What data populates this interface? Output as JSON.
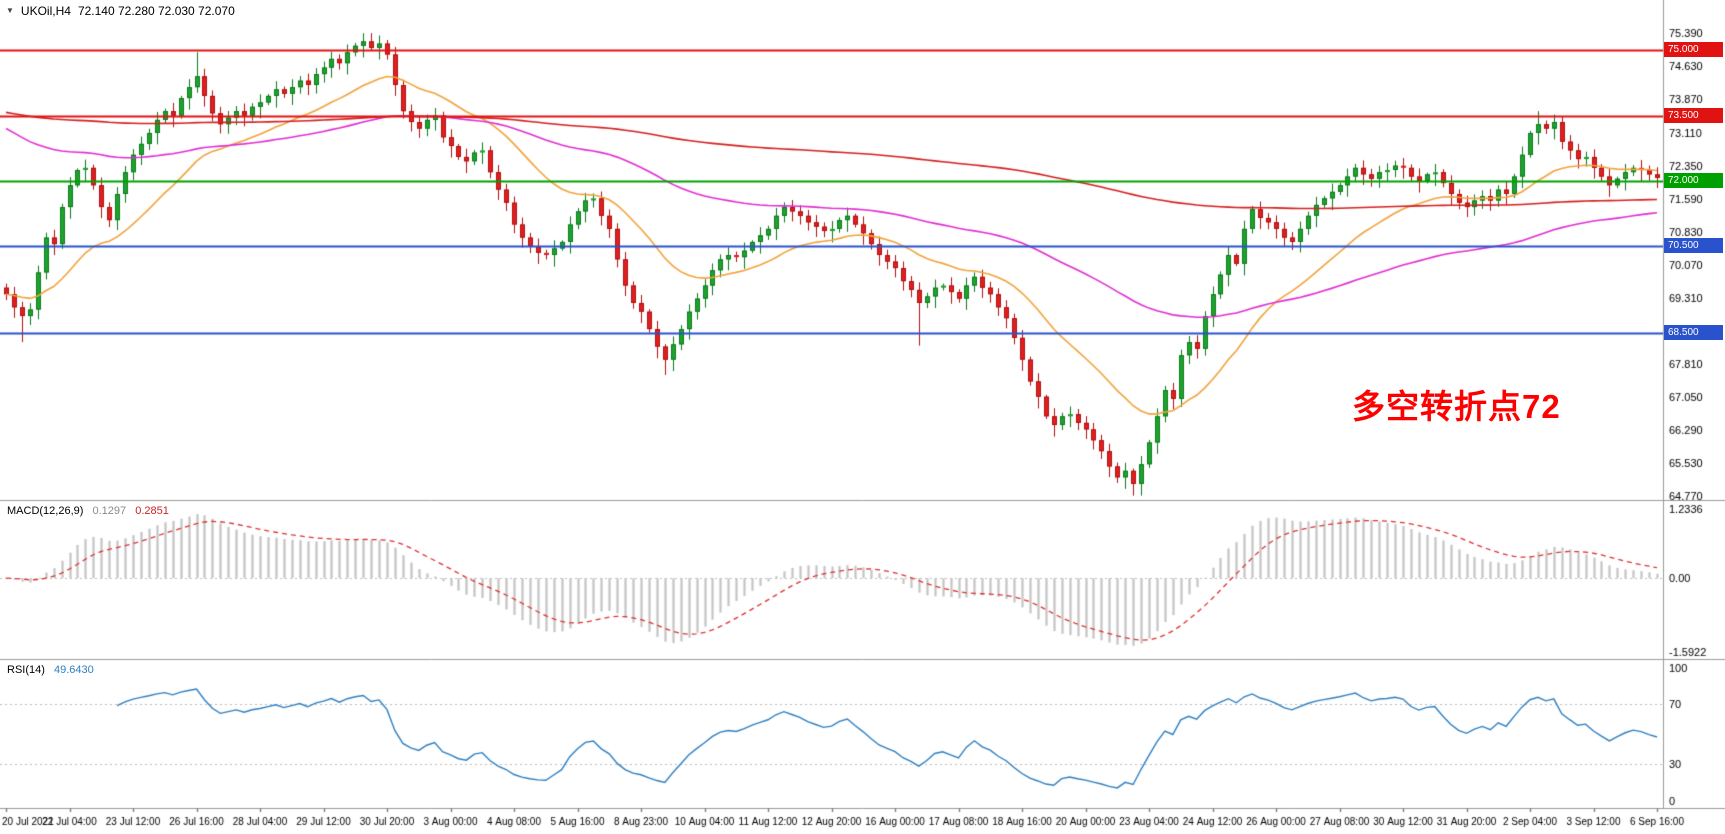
{
  "title": {
    "symbol": "UKOil,H4",
    "ohlc": "72.140 72.280 72.030 72.070"
  },
  "annotation": {
    "text": "多空转折点72",
    "color": "#ff0000"
  },
  "indicators": {
    "macd": {
      "label": "MACD(12,26,9)",
      "value1": "0.1297",
      "value2": "0.2851"
    },
    "rsi": {
      "label": "RSI(14)",
      "value": "49.6430"
    }
  },
  "chart_data": {
    "type": "candlestick",
    "symbol": "UKOil",
    "timeframe": "H4",
    "title": "UKOil,H4 72.140 72.280 72.030 72.070",
    "x_labels": [
      "20 Jul 2021",
      "22 Jul 04:00",
      "23 Jul 12:00",
      "26 Jul 16:00",
      "28 Jul 04:00",
      "29 Jul 12:00",
      "30 Jul 20:00",
      "3 Aug 00:00",
      "4 Aug 08:00",
      "5 Aug 16:00",
      "8 Aug 23:00",
      "10 Aug 04:00",
      "11 Aug 12:00",
      "12 Aug 20:00",
      "16 Aug 00:00",
      "17 Aug 08:00",
      "18 Aug 16:00",
      "20 Aug 00:00",
      "23 Aug 04:00",
      "24 Aug 12:00",
      "26 Aug 00:00",
      "27 Aug 08:00",
      "30 Aug 12:00",
      "31 Aug 20:00",
      "2 Sep 04:00",
      "3 Sep 12:00",
      "6 Sep 16:00"
    ],
    "bars_per_label": 8,
    "price_axis_labels": [
      "75.390",
      "74.630",
      "73.870",
      "73.110",
      "72.350",
      "71.590",
      "70.830",
      "70.070",
      "69.310",
      "68.550",
      "67.810",
      "67.050",
      "66.290",
      "65.530",
      "64.770"
    ],
    "ylim": [
      64.68,
      76.15
    ],
    "first_open": 69.55,
    "closes": [
      69.4,
      69.1,
      68.9,
      69.05,
      69.9,
      70.7,
      70.55,
      71.4,
      71.9,
      72.25,
      72.3,
      71.9,
      71.4,
      71.1,
      71.7,
      72.2,
      72.6,
      72.85,
      73.1,
      73.4,
      73.6,
      73.5,
      73.9,
      74.15,
      74.4,
      73.95,
      73.55,
      73.3,
      73.45,
      73.6,
      73.5,
      73.7,
      73.8,
      73.95,
      74.1,
      74.0,
      74.15,
      74.3,
      74.2,
      74.45,
      74.6,
      74.8,
      74.7,
      74.95,
      75.1,
      75.2,
      75.05,
      75.15,
      74.9,
      74.2,
      73.6,
      73.35,
      73.2,
      73.4,
      73.5,
      73.0,
      72.8,
      72.55,
      72.45,
      72.65,
      72.7,
      72.2,
      71.8,
      71.5,
      71.0,
      70.7,
      70.5,
      70.35,
      70.3,
      70.45,
      70.6,
      71.0,
      71.3,
      71.55,
      71.6,
      71.2,
      70.9,
      70.2,
      69.6,
      69.2,
      69.0,
      68.6,
      68.2,
      67.9,
      68.25,
      68.6,
      69.0,
      69.3,
      69.6,
      69.95,
      70.2,
      70.3,
      70.25,
      70.4,
      70.6,
      70.75,
      70.9,
      71.2,
      71.4,
      71.3,
      71.2,
      71.05,
      70.95,
      70.85,
      70.9,
      71.1,
      71.2,
      71.0,
      70.8,
      70.55,
      70.3,
      70.15,
      70.0,
      69.7,
      69.5,
      69.2,
      69.35,
      69.55,
      69.6,
      69.45,
      69.3,
      69.6,
      69.8,
      69.55,
      69.4,
      69.1,
      68.85,
      68.4,
      67.9,
      67.4,
      67.05,
      66.6,
      66.4,
      66.6,
      66.65,
      66.45,
      66.3,
      66.05,
      65.8,
      65.45,
      65.2,
      65.35,
      65.05,
      65.5,
      66.0,
      66.6,
      67.2,
      67.0,
      68.0,
      68.3,
      68.15,
      68.9,
      69.4,
      69.85,
      70.3,
      70.1,
      70.9,
      71.35,
      71.15,
      71.05,
      70.9,
      70.7,
      70.6,
      70.9,
      71.2,
      71.45,
      71.6,
      71.75,
      71.9,
      72.1,
      72.3,
      72.15,
      72.05,
      72.2,
      72.25,
      72.35,
      72.3,
      72.1,
      72.0,
      72.15,
      72.2,
      71.95,
      71.7,
      71.5,
      71.4,
      71.55,
      71.65,
      71.55,
      71.8,
      71.7,
      72.1,
      72.6,
      73.1,
      73.3,
      73.2,
      73.35,
      72.9,
      72.7,
      72.5,
      72.55,
      72.3,
      72.1,
      71.9,
      72.05,
      72.2,
      72.3,
      72.25,
      72.15,
      72.07
    ],
    "special_wicks": {
      "2": {
        "l": 68.3
      },
      "24": {
        "h": 74.95
      },
      "46": {
        "h": 75.39
      },
      "83": {
        "l": 67.55
      },
      "115": {
        "l": 68.22
      },
      "142": {
        "l": 64.78
      },
      "193": {
        "h": 73.6
      }
    },
    "levels": [
      {
        "price": 75.0,
        "label": "75.000",
        "color": "#e01212",
        "width": 2
      },
      {
        "price": 73.5,
        "label": "73.500",
        "color": "#e01212",
        "width": 2
      },
      {
        "price": 72.0,
        "label": "72.000",
        "color": "#00a000",
        "width": 2
      },
      {
        "price": 70.5,
        "label": "70.500",
        "color": "#2952cc",
        "width": 2
      },
      {
        "price": 68.5,
        "label": "68.500",
        "color": "#2952cc",
        "width": 2
      }
    ],
    "moving_averages": [
      {
        "name": "fast-ma",
        "period": 21,
        "seed": null,
        "color": "#f2a33c"
      },
      {
        "name": "mid-ma",
        "period": 80,
        "seed": 73.3,
        "color": "#e02fd2"
      },
      {
        "name": "slow-ma",
        "period": 300,
        "seed": 73.6,
        "color": "#d42020"
      }
    ],
    "macd": {
      "fast": 12,
      "slow": 26,
      "signal": 9,
      "value_main": "0.1297",
      "value_signal": "0.2851",
      "axis_labels": [
        "1.2336",
        "0.00",
        "-1.5922"
      ],
      "hist_color": "#c4c4c4",
      "signal_color": "#dd3333"
    },
    "rsi": {
      "period": 14,
      "value": "49.6430",
      "axis_labels": [
        "100",
        "70",
        "30",
        "0"
      ],
      "levels": [
        70,
        30
      ],
      "color": "#2e7fc1"
    },
    "candle_colors": {
      "up": "#1fa32e",
      "up_border": "#0c7a1e",
      "down": "#e02020",
      "down_border": "#b01010"
    }
  }
}
